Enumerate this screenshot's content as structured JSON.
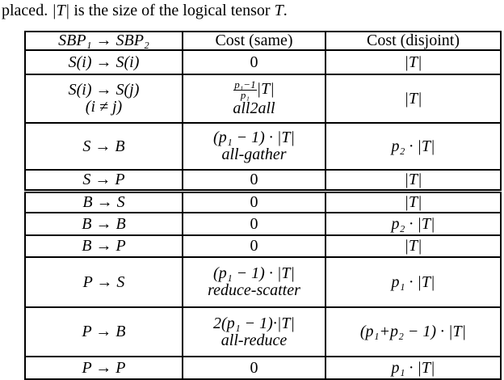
{
  "caption": {
    "prefix": "placed. ",
    "t1": "|T|",
    "mid": " is the size of the logical tensor ",
    "t2": "T",
    "end": "."
  },
  "table": {
    "headers": [
      "SBP₁ → SBP₂",
      "Cost (same)",
      "Cost (disjoint)"
    ],
    "rows": [
      {
        "transition": "S(i) → S(i)",
        "same": "0",
        "disjoint": "|T|"
      },
      {
        "transition": "S(i) → S(j)",
        "transition_note": "(i ≠ j)",
        "same_frac_num": "p₁−1",
        "same_frac_den": "p₁",
        "same": "|T|",
        "same_op": "all2all",
        "disjoint": "|T|"
      },
      {
        "transition": "S → B",
        "same": "(p₁ − 1) · |T|",
        "same_op": "all-gather",
        "disjoint": "p₂ · |T|"
      },
      {
        "transition": "S → P",
        "same": "0",
        "disjoint": "|T|"
      },
      {
        "transition": "B → S",
        "same": "0",
        "disjoint": "|T|"
      },
      {
        "transition": "B → B",
        "same": "0",
        "disjoint": "p₂ · |T|"
      },
      {
        "transition": "B → P",
        "same": "0",
        "disjoint": "|T|"
      },
      {
        "transition": "P → S",
        "same": "(p₁ − 1) · |T|",
        "same_op": "reduce-scatter",
        "disjoint": "p₁ · |T|"
      },
      {
        "transition": "P → B",
        "same": "2(p₁ − 1)·|T|",
        "same_op": "all-reduce",
        "disjoint": "(p₁+p₂ − 1) · |T|"
      },
      {
        "transition": "P → P",
        "same": "0",
        "disjoint": "p₁ · |T|"
      }
    ]
  }
}
